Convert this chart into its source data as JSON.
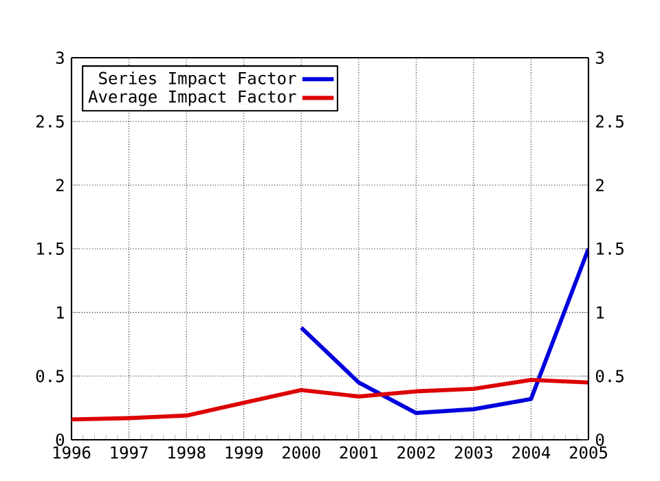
{
  "chart_data": {
    "type": "line",
    "x": [
      1996,
      1997,
      1998,
      1999,
      2000,
      2001,
      2002,
      2003,
      2004,
      2005
    ],
    "series": [
      {
        "name": "Series Impact Factor",
        "color": "#0000dd",
        "values": [
          null,
          null,
          null,
          null,
          0.88,
          0.45,
          0.21,
          0.24,
          0.32,
          1.5
        ]
      },
      {
        "name": "Average Impact Factor",
        "color": "#dd0000",
        "values": [
          0.16,
          0.17,
          0.19,
          0.29,
          0.39,
          0.34,
          0.38,
          0.4,
          0.47,
          0.45
        ]
      }
    ],
    "xlim": [
      1996,
      2005
    ],
    "xticks": [
      1996,
      1997,
      1998,
      1999,
      2000,
      2001,
      2002,
      2003,
      2004,
      2005
    ],
    "ylim": [
      0,
      3
    ],
    "yticks": [
      0,
      0.5,
      1,
      1.5,
      2,
      2.5,
      3
    ],
    "y2lim": [
      0,
      3
    ],
    "y2ticks": [
      0,
      0.5,
      1,
      1.5,
      2,
      2.5,
      3
    ],
    "grid": true,
    "legend": "top left",
    "marker": "none",
    "line_style": "solid"
  }
}
